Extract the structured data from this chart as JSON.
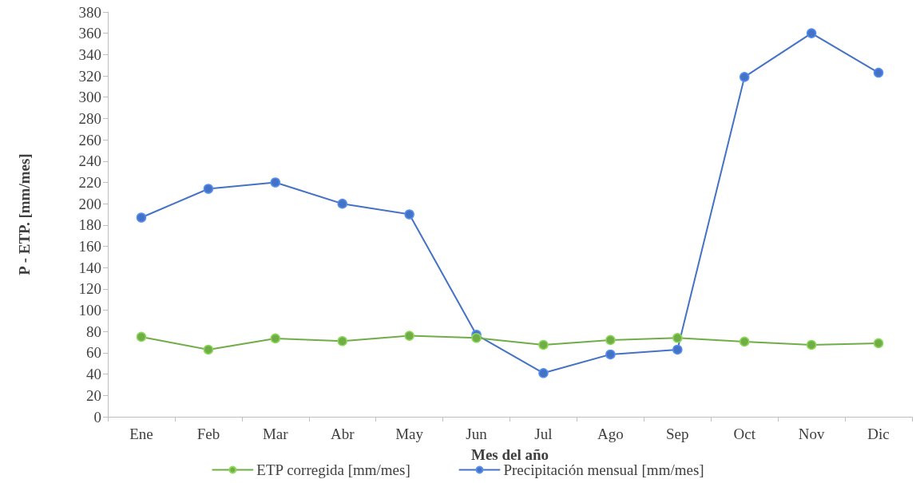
{
  "chart_data": {
    "type": "line",
    "xlabel": "Mes del año",
    "ylabel": "P - ETP. [mm/mes]",
    "categories": [
      "Ene",
      "Feb",
      "Mar",
      "Abr",
      "May",
      "Jun",
      "Jul",
      "Ago",
      "Sep",
      "Oct",
      "Nov",
      "Dic"
    ],
    "series": [
      {
        "name": "ETP corregida [mm/mes]",
        "color": "#70ad47",
        "values": [
          75,
          63,
          73.5,
          71,
          76,
          74,
          67.5,
          72,
          74,
          70.5,
          67.5,
          69
        ]
      },
      {
        "name": "Precipitación mensual [mm/mes]",
        "color": "#4472c4",
        "values": [
          187,
          214,
          220,
          200,
          190,
          77,
          41,
          58.5,
          63,
          319,
          360,
          323
        ]
      }
    ],
    "ylim": [
      0,
      380
    ],
    "yticks": [
      0,
      20,
      40,
      60,
      80,
      100,
      120,
      140,
      160,
      180,
      200,
      220,
      240,
      260,
      280,
      300,
      320,
      340,
      360,
      380
    ],
    "grid": false,
    "legend": "bottom",
    "marker": "circle",
    "line_style": "solid"
  }
}
